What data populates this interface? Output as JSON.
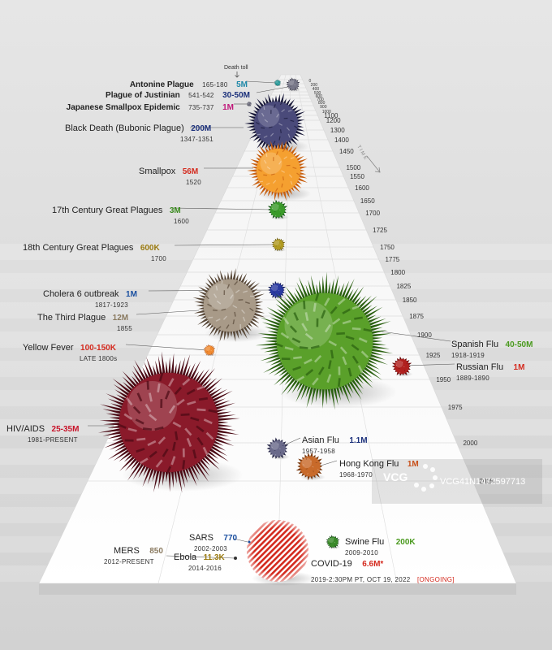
{
  "header": {
    "death_toll_label": "Death toll",
    "time_label": "T I M E"
  },
  "timeline_years": [
    "0",
    "200",
    "400",
    "500",
    "600",
    "700",
    "800",
    "900",
    "1000",
    "1100",
    "1200",
    "1300",
    "1400",
    "1450",
    "1500",
    "1550",
    "1600",
    "1650",
    "1700",
    "1725",
    "1750",
    "1775",
    "1800",
    "1825",
    "1850",
    "1875",
    "1900",
    "1925",
    "1950",
    "1975",
    "2000",
    "2025"
  ],
  "pandemics": [
    {
      "name": "Antonine Plague",
      "date": "165-180",
      "toll": "5M",
      "color": "#1e88a8"
    },
    {
      "name": "Plague of Justinian",
      "date": "541-542",
      "toll": "30-50M",
      "color": "#1a2f7a"
    },
    {
      "name": "Japanese Smallpox Epidemic",
      "date": "735-737",
      "toll": "1M",
      "color": "#c0187a"
    },
    {
      "name": "Black Death (Bubonic Plague)",
      "date": "1347-1351",
      "toll": "200M",
      "color": "#1a2f7a"
    },
    {
      "name": "Smallpox",
      "date": "1520",
      "toll": "56M",
      "color": "#d42a1e"
    },
    {
      "name": "17th Century Great Plagues",
      "date": "1600",
      "toll": "3M",
      "color": "#3a8a1e"
    },
    {
      "name": "18th Century Great Plagues",
      "date": "1700",
      "toll": "600K",
      "color": "#9a7a10"
    },
    {
      "name": "Cholera 6 outbreak",
      "date": "1817-1923",
      "toll": "1M",
      "color": "#1a4fa0"
    },
    {
      "name": "The Third Plague",
      "date": "1855",
      "toll": "12M",
      "color": "#8a7a60"
    },
    {
      "name": "Yellow Fever",
      "date": "LATE 1800s",
      "toll": "100-150K",
      "color": "#d42a1e"
    },
    {
      "name": "Spanish Flu",
      "date": "1918-1919",
      "toll": "40-50M",
      "color": "#4a9a1e"
    },
    {
      "name": "Russian Flu",
      "date": "1889-1890",
      "toll": "1M",
      "color": "#d42a1e"
    },
    {
      "name": "HIV/AIDS",
      "date": "1981-PRESENT",
      "toll": "25-35M",
      "color": "#c8142a"
    },
    {
      "name": "Asian Flu",
      "date": "1957-1958",
      "toll": "1.1M",
      "color": "#1a2f7a"
    },
    {
      "name": "Hong Kong Flu",
      "date": "1968-1970",
      "toll": "1M",
      "color": "#c8501a"
    },
    {
      "name": "SARS",
      "date": "2002-2003",
      "toll": "770",
      "color": "#1a4fa0"
    },
    {
      "name": "MERS",
      "date": "2012-PRESENT",
      "toll": "850",
      "color": "#8a7a60"
    },
    {
      "name": "Ebola",
      "date": "2014-2016",
      "toll": "11.3K",
      "color": "#9a7a10"
    },
    {
      "name": "Swine Flu",
      "date": "2009-2010",
      "toll": "200K",
      "color": "#4a9a1e"
    },
    {
      "name": "COVID-19",
      "date": "2019-2:30PM PT, OCT 19, 2022",
      "date_note": "[ONGOING]",
      "toll": "6.6M*",
      "color": "#d42a1e"
    }
  ],
  "watermark": {
    "logo": "VCG",
    "id": "VCG41N1472597713"
  },
  "colors": {
    "background": "#dcdcdc",
    "plane": "#ffffff",
    "ink": "#222222"
  }
}
